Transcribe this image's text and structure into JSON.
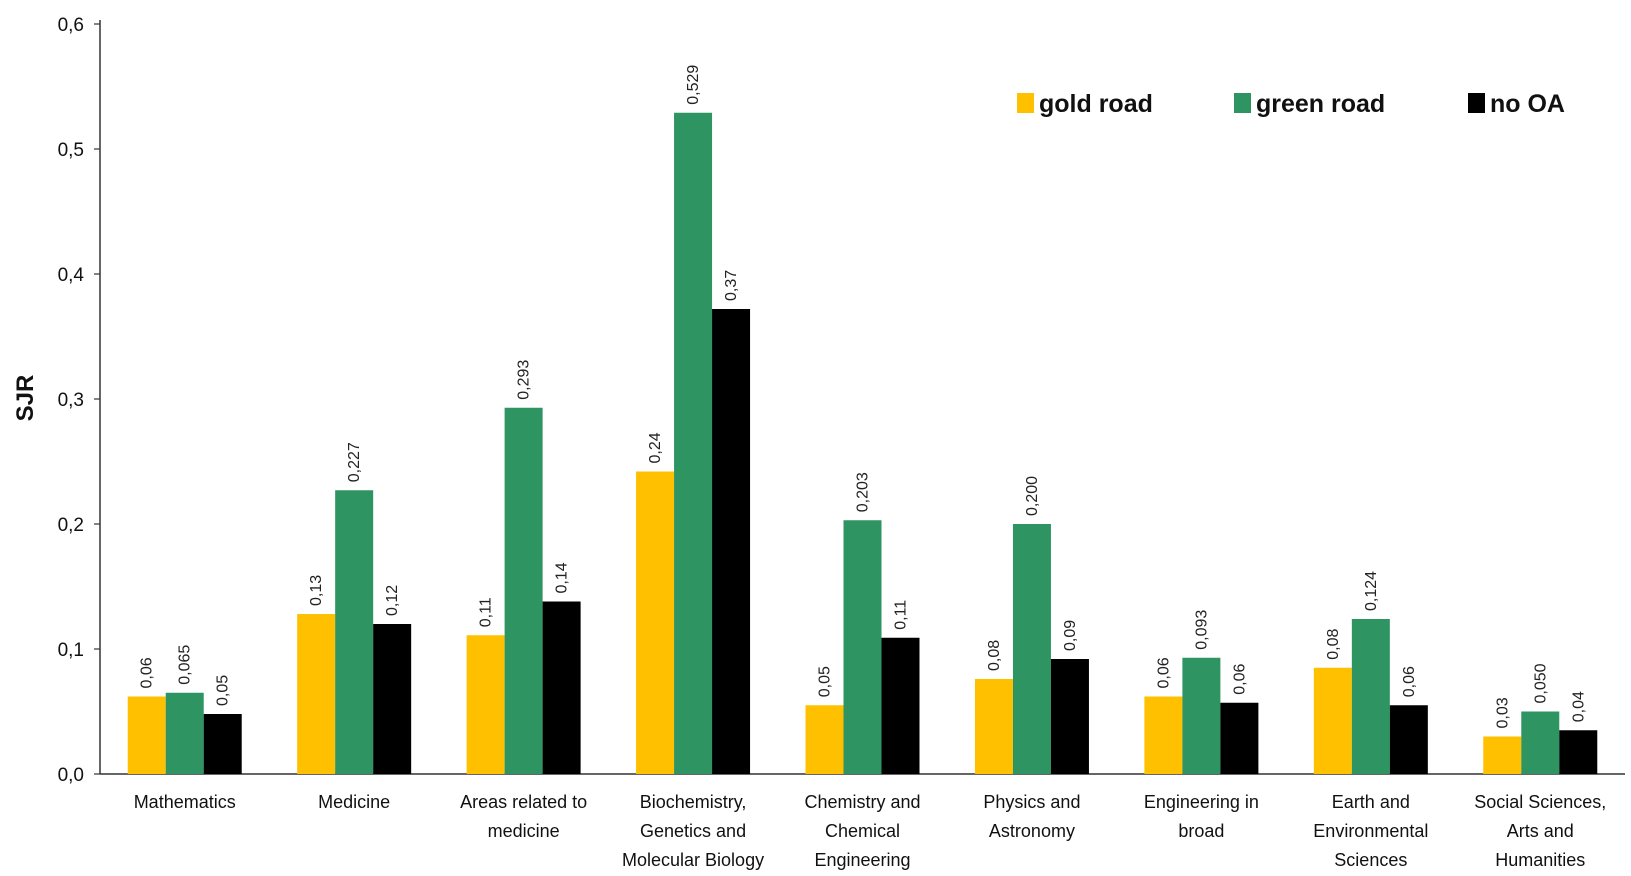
{
  "chart_data": {
    "type": "bar",
    "title": "",
    "xlabel": "",
    "ylabel": "SJR",
    "ylim": [
      0,
      0.6
    ],
    "yticks": [
      "0,0",
      "0,1",
      "0,2",
      "0,3",
      "0,4",
      "0,5",
      "0,6"
    ],
    "grid": false,
    "legend_position": "top-right",
    "categories": [
      [
        "Mathematics"
      ],
      [
        "Medicine"
      ],
      [
        "Areas related to",
        "medicine"
      ],
      [
        "Biochemistry,",
        "Genetics and",
        "Molecular Biology"
      ],
      [
        "Chemistry and",
        "Chemical",
        "Engineering"
      ],
      [
        "Physics and",
        "Astronomy"
      ],
      [
        "Engineering in",
        "broad"
      ],
      [
        "Earth and",
        "Environmental",
        "Sciences"
      ],
      [
        "Social Sciences,",
        "Arts and",
        "Humanities"
      ]
    ],
    "series": [
      {
        "name": "gold road",
        "color": "#FFC000",
        "values": [
          0.062,
          0.128,
          0.111,
          0.242,
          0.055,
          0.076,
          0.062,
          0.085,
          0.03
        ],
        "labels": [
          "0,06",
          "0,13",
          "0,11",
          "0,24",
          "0,05",
          "0,08",
          "0,06",
          "0,08",
          "0,03"
        ]
      },
      {
        "name": "green road",
        "color": "#2E9461",
        "values": [
          0.065,
          0.227,
          0.293,
          0.529,
          0.203,
          0.2,
          0.093,
          0.124,
          0.05
        ],
        "labels": [
          "0,065",
          "0,227",
          "0,293",
          "0,529",
          "0,203",
          "0,200",
          "0,093",
          "0,124",
          "0,050"
        ]
      },
      {
        "name": "no OA",
        "color": "#000000",
        "values": [
          0.048,
          0.12,
          0.138,
          0.372,
          0.109,
          0.092,
          0.057,
          0.055,
          0.035
        ],
        "labels": [
          "0,05",
          "0,12",
          "0,14",
          "0,37",
          "0,11",
          "0,09",
          "0,06",
          "0,06",
          "0,04"
        ]
      }
    ]
  }
}
